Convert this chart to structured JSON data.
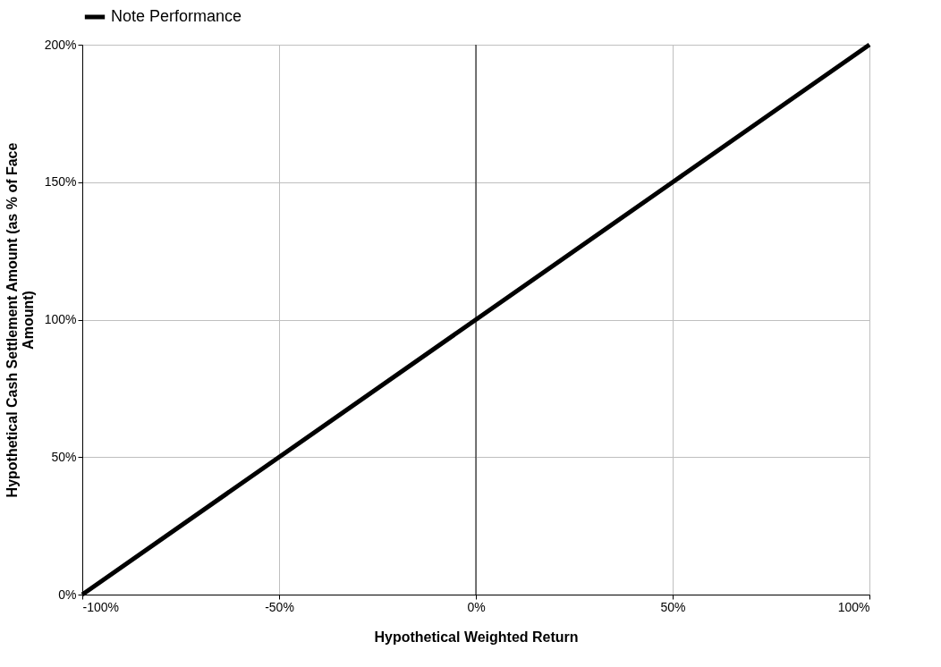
{
  "chart_data": {
    "type": "line",
    "xlabel": "Hypothetical Weighted Return",
    "ylabel": "Hypothetical Cash Settlement Amount (as % of Face Amount)",
    "x": [
      -100,
      -50,
      0,
      50,
      100
    ],
    "series": [
      {
        "name": "Note Performance",
        "color": "#000000",
        "values": [
          0,
          50,
          100,
          150,
          200
        ]
      }
    ],
    "xlim": [
      -100,
      100
    ],
    "xticks": [
      {
        "value": -100,
        "label": "-100%"
      },
      {
        "value": -50,
        "label": "-50%"
      },
      {
        "value": 0,
        "label": "0%"
      },
      {
        "value": 50,
        "label": "50%"
      },
      {
        "value": 100,
        "label": "100%"
      }
    ],
    "ylim": [
      0,
      200
    ],
    "yticks": [
      {
        "value": 0,
        "label": "0%"
      },
      {
        "value": 50,
        "label": "50%"
      },
      {
        "value": 100,
        "label": "100%"
      },
      {
        "value": 150,
        "label": "150%"
      },
      {
        "value": 200,
        "label": "200%"
      }
    ],
    "ref_lines": [
      {
        "axis": "x",
        "value": 0,
        "label": null,
        "color": "#000000"
      }
    ],
    "grid": true,
    "legend": "top",
    "marker": "none",
    "line_style": "solid"
  }
}
